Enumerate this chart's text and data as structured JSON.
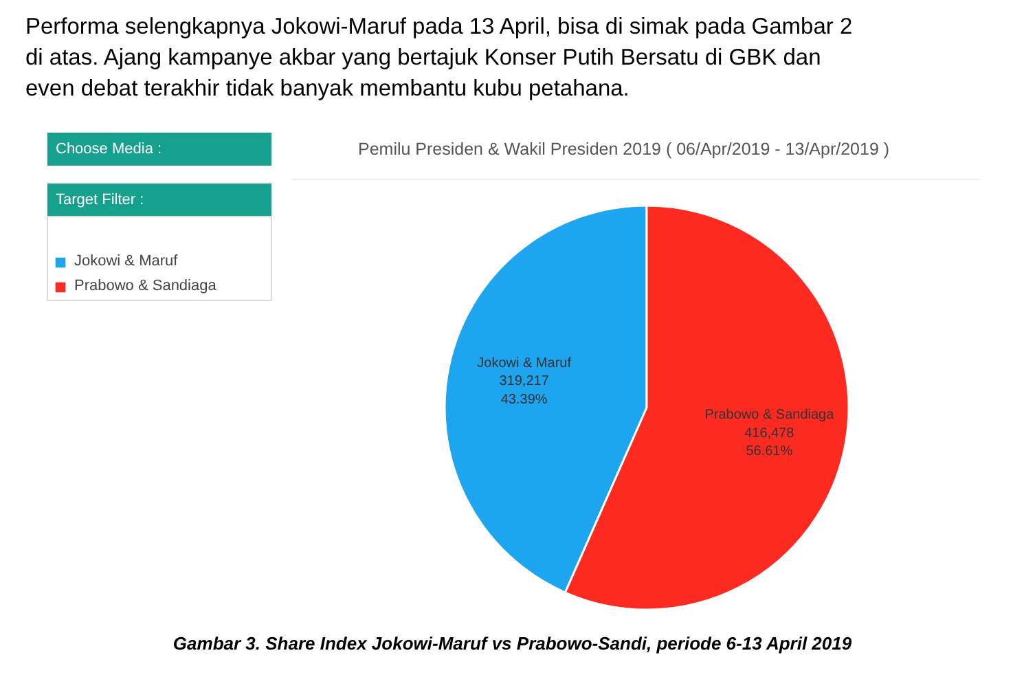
{
  "chart_data": {
    "type": "pie",
    "title": "Pemilu Presiden & Wakil Presiden 2019  ( 06/Apr/2019 - 13/Apr/2019 )",
    "categories": [
      "Jokowi & Maruf",
      "Prabowo & Sandiaga"
    ],
    "values": [
      319217,
      416478
    ],
    "colors": [
      "#1ea5ef",
      "#fc2a21"
    ],
    "value_labels": [
      "319,217\n43.39%",
      "416,478\n56.61%"
    ],
    "legend": "left",
    "annotations": [
      "Performa selengkapnya Jokowi-Maruf pada 13 April, bisa di simak pada Gambar 2 di atas. Ajang kampanye akbar yang bertajuk  Konser Putih Bersatu di GBK dan even debat terakhir tidak banyak membantu kubu petahana.",
      "Choose Media :",
      "Target Filter :",
      "Gambar 3. Share Index Jokowi-Maruf vs Prabowo-Sandi, periode 6-13 April 2019"
    ]
  }
}
